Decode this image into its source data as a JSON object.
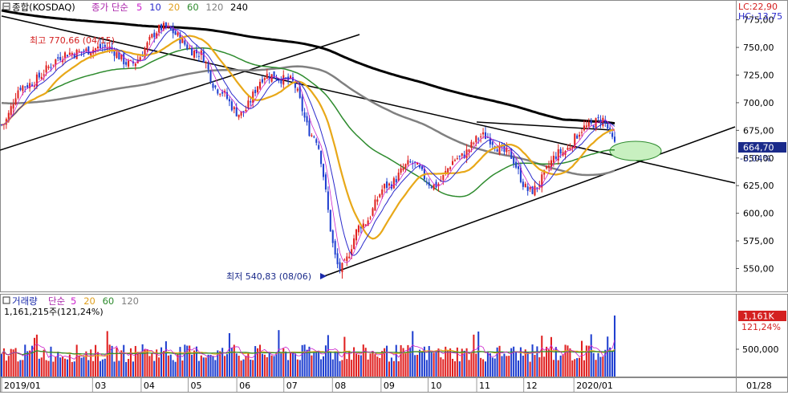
{
  "header": {
    "title": "종합(KOSDAQ)",
    "ma_label": "종가 단순",
    "ma_periods": [
      {
        "label": "5",
        "color": "#cc22cc"
      },
      {
        "label": "10",
        "color": "#2a2acc"
      },
      {
        "label": "20",
        "color": "#e0a020"
      },
      {
        "label": "60",
        "color": "#2e8b2e"
      },
      {
        "label": "120",
        "color": "#808080"
      },
      {
        "label": "240",
        "color": "#000000"
      }
    ],
    "lc": "LC:22,90",
    "hc": "HC:-13,75"
  },
  "annotations": {
    "high": "최고 770,66 (04/15)",
    "low": "최저 540,83 (08/06)"
  },
  "price_panel": {
    "current_price": "664,70",
    "change_pct": "-3,04%",
    "y_ticks": [
      "775,00",
      "750,00",
      "725,00",
      "700,00",
      "675,00",
      "650,00",
      "625,00",
      "600,00",
      "575,00",
      "550,00"
    ]
  },
  "volume_panel": {
    "label": "거래량",
    "ma_label": "단순",
    "ma_periods": [
      {
        "label": "5",
        "color": "#cc22cc"
      },
      {
        "label": "20",
        "color": "#e0a020"
      },
      {
        "label": "60",
        "color": "#2e8b2e"
      },
      {
        "label": "120",
        "color": "#808080"
      }
    ],
    "value_text": "1,161,215주(121,24%)",
    "badge_value": "1,161K",
    "badge_pct": "121,24%",
    "y_tick": "500,000"
  },
  "x_axis": {
    "labels": [
      "2019/01",
      "03",
      "04",
      "05",
      "06",
      "07",
      "08",
      "09",
      "10",
      "11",
      "12",
      "2020/01"
    ],
    "right_label": "01/28"
  },
  "colors": {
    "up": "#e02020",
    "down": "#2040d0",
    "ma5": "#cc22cc",
    "ma10": "#2a2acc",
    "ma20": "#e8a818",
    "ma60": "#2e8b2e",
    "ma120": "#808080",
    "ma240": "#000000",
    "accent": "#d42020"
  },
  "chart_data": {
    "type": "candlestick",
    "title": "종합(KOSDAQ)",
    "x_start": "2019/01",
    "x_end": "2020/01/28",
    "price_range": [
      530,
      790
    ],
    "price_anchors": [
      {
        "date": "2019/01/02",
        "value": 680
      },
      {
        "date": "2019/01/15",
        "value": 715
      },
      {
        "date": "2019/02/15",
        "value": 745
      },
      {
        "date": "2019/03/10",
        "value": 750
      },
      {
        "date": "2019/03/25",
        "value": 735
      },
      {
        "date": "2019/04/15",
        "value": 768
      },
      {
        "date": "2019/05/08",
        "value": 745
      },
      {
        "date": "2019/05/20",
        "value": 712
      },
      {
        "date": "2019/06/03",
        "value": 690
      },
      {
        "date": "2019/06/20",
        "value": 725
      },
      {
        "date": "2019/07/05",
        "value": 720
      },
      {
        "date": "2019/07/20",
        "value": 670
      },
      {
        "date": "2019/08/06",
        "value": 550
      },
      {
        "date": "2019/08/20",
        "value": 590
      },
      {
        "date": "2019/09/05",
        "value": 625
      },
      {
        "date": "2019/09/20",
        "value": 645
      },
      {
        "date": "2019/10/05",
        "value": 625
      },
      {
        "date": "2019/10/20",
        "value": 650
      },
      {
        "date": "2019/11/05",
        "value": 670
      },
      {
        "date": "2019/11/20",
        "value": 655
      },
      {
        "date": "2019/12/05",
        "value": 620
      },
      {
        "date": "2019/12/25",
        "value": 655
      },
      {
        "date": "2020/01/10",
        "value": 678
      },
      {
        "date": "2020/01/20",
        "value": 685
      },
      {
        "date": "2020/01/28",
        "value": 664.7
      }
    ],
    "high": {
      "value": 770.66,
      "date": "04/15"
    },
    "low": {
      "value": 540.83,
      "date": "08/06"
    },
    "last_close": 664.7,
    "last_change_pct": -3.04,
    "moving_averages": [
      5,
      10,
      20,
      60,
      120,
      240
    ],
    "volume": {
      "last": 1161215,
      "last_pct_of_ma": 121.24,
      "y_tick": 500000
    },
    "grid": false
  }
}
